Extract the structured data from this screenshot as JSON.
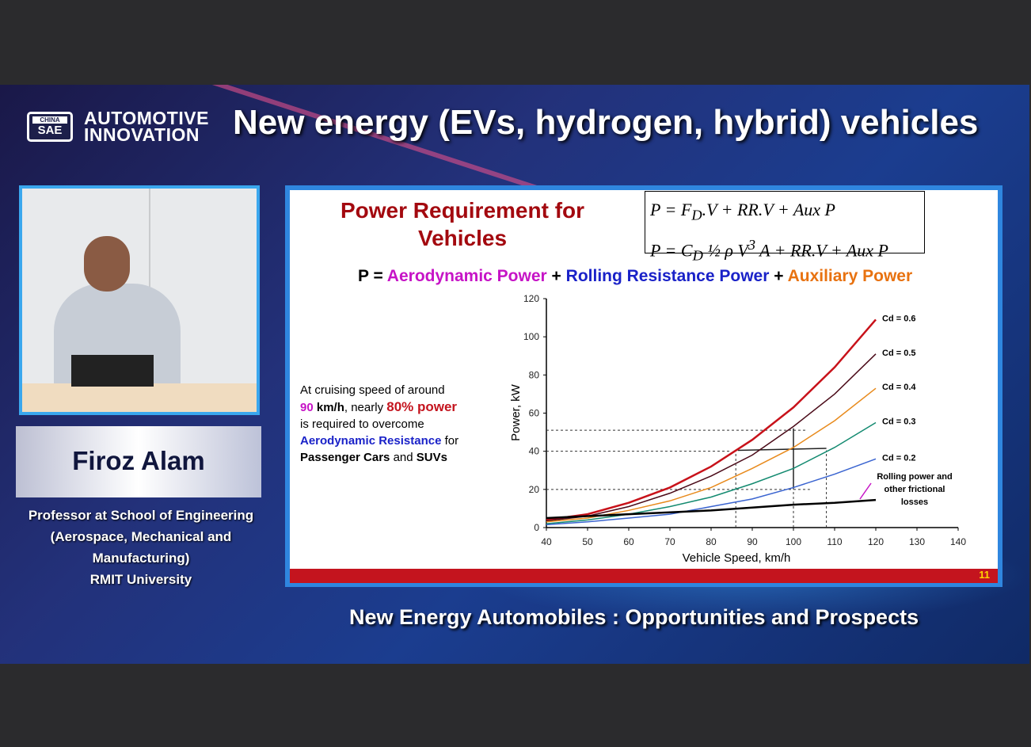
{
  "header": {
    "logo_text": "CHINA SAE",
    "brand_line1": "AUTOMOTIVE",
    "brand_line2": "INNOVATION",
    "title": "New energy (EVs, hydrogen, hybrid) vehicles"
  },
  "speaker": {
    "name": "Firoz  Alam",
    "affiliation": [
      "Professor at School of Engineering",
      "(Aerospace, Mechanical and Manufacturing)",
      "RMIT  University"
    ]
  },
  "slide": {
    "title_line1": "Power Requirement for",
    "title_line2": "Vehicles",
    "equation1": "P = F_D.V + RR.V + Aux P",
    "equation2": "P = C_D ½ ρ V³ A + RR.V + Aux P",
    "eq1_html": "P = F<sub>D</sub>.V + RR.V + Aux P",
    "eq2_html": "P = C<sub>D</sub> ½ ρ V<sup>3</sup> A + RR.V + Aux P",
    "formula": {
      "p": "P =",
      "aero": "Aerodynamic Power",
      "plus": "+",
      "rolling": "Rolling Resistance Power",
      "aux": "Auxiliary Power"
    },
    "colors": {
      "aero": "#c614c6",
      "rolling": "#1a22c8",
      "aux": "#e87210",
      "title": "#a3090f",
      "highlight": "#c4141e"
    },
    "note": {
      "t1": "At cruising speed of around",
      "n90": "90",
      "kmh": " km/h",
      "t2": ", nearly ",
      "p80": "80% power",
      "t3": "is required to overcome",
      "aero": "Aerodynamic Resistance",
      "t4": " for",
      "cars": "Passenger Cars",
      "and": " and ",
      "suv": "SUVs"
    },
    "page_number": "11"
  },
  "chart_data": {
    "type": "line",
    "xlabel": "Vehicle Speed, km/h",
    "ylabel": "Power, kW",
    "xlim": [
      40,
      140
    ],
    "ylim": [
      0,
      120
    ],
    "xticks": [
      40,
      50,
      60,
      70,
      80,
      90,
      100,
      110,
      120,
      130,
      140
    ],
    "yticks": [
      0,
      20,
      40,
      60,
      80,
      100,
      120
    ],
    "x": [
      40,
      50,
      60,
      70,
      80,
      90,
      100,
      110,
      120
    ],
    "series": [
      {
        "name": "Cd = 0.6",
        "color": "#c8121a",
        "values": [
          4,
          7,
          13,
          21,
          32,
          46,
          63,
          84,
          109
        ]
      },
      {
        "name": "Cd = 0.5",
        "color": "#4a0a18",
        "values": [
          3.5,
          6,
          11,
          18,
          27,
          38,
          53,
          70,
          91
        ]
      },
      {
        "name": "Cd = 0.4",
        "color": "#e88a1c",
        "values": [
          3,
          5,
          9,
          14,
          21,
          31,
          42,
          56,
          73
        ]
      },
      {
        "name": "Cd = 0.3",
        "color": "#138a70",
        "values": [
          2,
          4,
          7,
          11,
          16,
          23,
          31,
          42,
          55
        ]
      },
      {
        "name": "Cd = 0.2",
        "color": "#3a64d0",
        "values": [
          1.5,
          3,
          5,
          7,
          11,
          15,
          21,
          28,
          36
        ]
      },
      {
        "name": "Rolling power and other frictional losses",
        "color": "#000000",
        "values": [
          5,
          6,
          7,
          8,
          9,
          10.5,
          12,
          13,
          14.5
        ]
      }
    ],
    "annotation": "Rolling power and other frictional losses",
    "reference_lines": {
      "y": [
        51,
        40,
        20
      ],
      "x": [
        86,
        100,
        108
      ]
    }
  },
  "footer": {
    "text": "New Energy Automobiles : Opportunities and Prospects"
  }
}
